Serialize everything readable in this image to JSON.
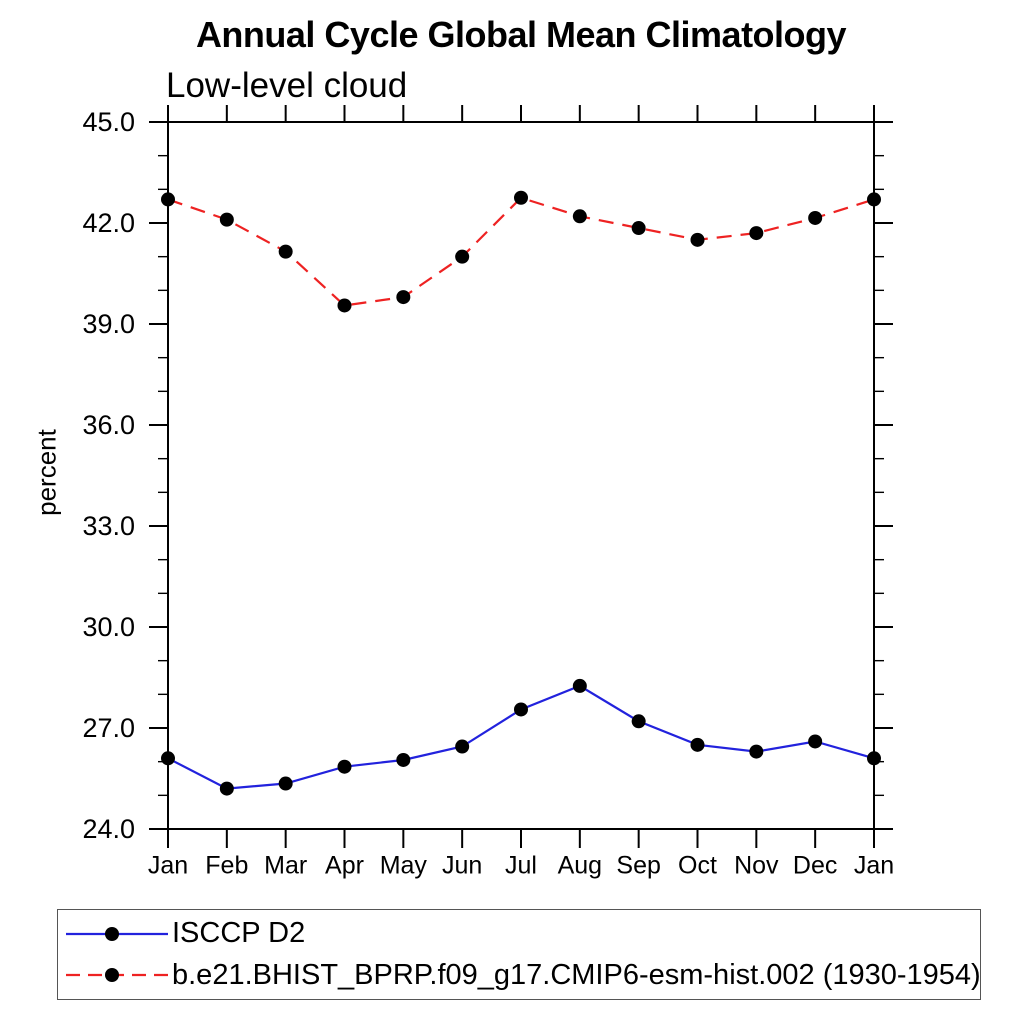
{
  "chart_data": {
    "type": "line",
    "title": "Annual Cycle Global Mean Climatology",
    "subtitle": "Low-level cloud",
    "ylabel": "percent",
    "xlabel": "",
    "categories": [
      "Jan",
      "Feb",
      "Mar",
      "Apr",
      "May",
      "Jun",
      "Jul",
      "Aug",
      "Sep",
      "Oct",
      "Nov",
      "Dec",
      "Jan"
    ],
    "ylim": [
      24.0,
      45.0
    ],
    "ytick_major_step": 3.0,
    "ytick_minor_step": 1.0,
    "ytick_label_format": "one-decimal",
    "grid": false,
    "legend_position": "bottom-left-boxed",
    "axis_color": "#000000",
    "marker": "filled-circle",
    "marker_color": "#000000",
    "series": [
      {
        "name": "ISCCP D2",
        "color": "#2222dd",
        "line_style": "solid",
        "values": [
          26.1,
          25.2,
          25.35,
          25.85,
          26.05,
          26.45,
          27.55,
          28.25,
          27.2,
          26.5,
          26.3,
          26.6,
          26.1
        ]
      },
      {
        "name": "b.e21.BHIST_BPRP.f09_g17.CMIP6-esm-hist.002 (1930-1954)",
        "color": "#ee2222",
        "line_style": "dashed",
        "values": [
          42.7,
          42.1,
          41.15,
          39.55,
          39.8,
          41.0,
          42.75,
          42.2,
          41.85,
          41.5,
          41.7,
          42.15,
          42.7
        ]
      }
    ]
  }
}
